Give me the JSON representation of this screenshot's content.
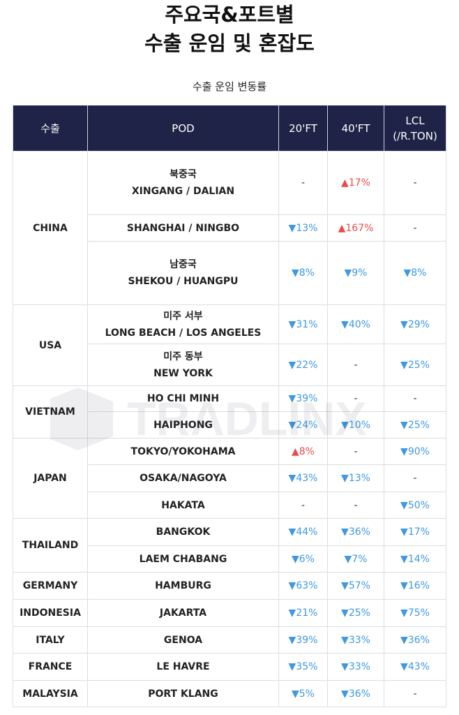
{
  "title_line1": "주요국&포트별",
  "title_line2": "수출 운임 및 혼잡도",
  "subtitle": "수출 운임 변동률",
  "headers": {
    "col1": "수출",
    "col2": "POD",
    "col3": "20'FT",
    "col4": "40'FT",
    "col5_line1": "LCL",
    "col5_line2": "(/R.TON)"
  },
  "rows": {
    "china": {
      "country": "CHINA",
      "r1": {
        "pod_kr": "북중국",
        "pod": "XINGANG / DALIAN",
        "ft20": "-",
        "ft40": "▲17%",
        "lcl": "-"
      },
      "r2": {
        "pod": "SHANGHAI / NINGBO",
        "ft20": "▼13%",
        "ft40": "▲167%",
        "lcl": "-"
      },
      "r3": {
        "pod_kr": "남중국",
        "pod": "SHEKOU / HUANGPU",
        "ft20": "▼8%",
        "ft40": "▼9%",
        "lcl": "▼8%"
      }
    },
    "usa": {
      "country": "USA",
      "r1": {
        "pod_kr": "미주 서부",
        "pod": "LONG BEACH / LOS ANGELES",
        "ft20": "▼31%",
        "ft40": "▼40%",
        "lcl": "▼29%"
      },
      "r2": {
        "pod_kr": "미주 동부",
        "pod": "NEW YORK",
        "ft20": "▼22%",
        "ft40": "-",
        "lcl": "▼25%"
      }
    },
    "vietnam": {
      "country": "VIETNAM",
      "r1": {
        "pod": "HO CHI MINH",
        "ft20": "▼39%",
        "ft40": "-",
        "lcl": "-"
      },
      "r2": {
        "pod": "HAIPHONG",
        "ft20": "▼24%",
        "ft40": "▼10%",
        "lcl": "▼25%"
      }
    },
    "japan": {
      "country": "JAPAN",
      "r1": {
        "pod": "TOKYO/YOKOHAMA",
        "ft20": "▲8%",
        "ft40": "-",
        "lcl": "▼90%"
      },
      "r2": {
        "pod": "OSAKA/NAGOYA",
        "ft20": "▼43%",
        "ft40": "▼13%",
        "lcl": "-"
      },
      "r3": {
        "pod": "HAKATA",
        "ft20": "-",
        "ft40": "-",
        "lcl": "▼50%"
      }
    },
    "thailand": {
      "country": "THAILAND",
      "r1": {
        "pod": "BANGKOK",
        "ft20": "▼44%",
        "ft40": "▼36%",
        "lcl": "▼17%"
      },
      "r2": {
        "pod": "LAEM CHABANG",
        "ft20": "▼6%",
        "ft40": "▼7%",
        "lcl": "▼14%"
      }
    },
    "germany": {
      "country": "GERMANY",
      "r1": {
        "pod": "HAMBURG",
        "ft20": "▼63%",
        "ft40": "▼57%",
        "lcl": "▼16%"
      }
    },
    "indonesia": {
      "country": "INDONESIA",
      "r1": {
        "pod": "JAKARTA",
        "ft20": "▼21%",
        "ft40": "▼25%",
        "lcl": "▼75%"
      }
    },
    "italy": {
      "country": "ITALY",
      "r1": {
        "pod": "GENOA",
        "ft20": "▼39%",
        "ft40": "▼33%",
        "lcl": "▼36%"
      }
    },
    "france": {
      "country": "FRANCE",
      "r1": {
        "pod": "LE HAVRE",
        "ft20": "▼35%",
        "ft40": "▼33%",
        "lcl": "▼43%"
      }
    },
    "malaysia": {
      "country": "MALAYSIA",
      "r1": {
        "pod": "PORT KLANG",
        "ft20": "▼5%",
        "ft40": "▼36%",
        "lcl": "-"
      }
    }
  },
  "watermark_text": "TRADLINX",
  "colors": {
    "header_bg": "#1f2347",
    "down": "#3f98e0",
    "up": "#e84b4b"
  }
}
